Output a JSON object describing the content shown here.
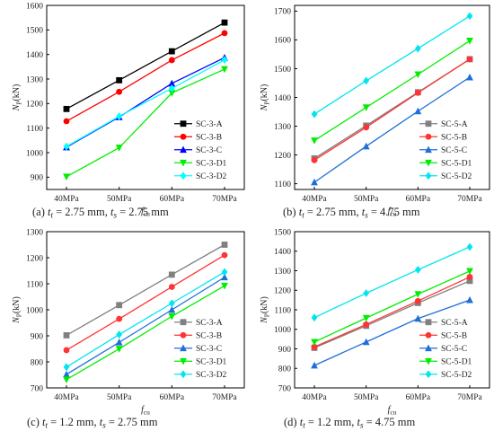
{
  "chart_data": [
    {
      "type": "line",
      "caption_prefix": "(a)",
      "caption_formula": "t_t = 2.75 mm, t_s = 2.75 mm",
      "xlabel": "f_cu",
      "ylabel": "N_P(kN)",
      "categories": [
        "40MPa",
        "50MPa",
        "60MPa",
        "70MPa"
      ],
      "ylim": [
        850,
        1600
      ],
      "yticks": [
        900,
        1000,
        1100,
        1200,
        1300,
        1400,
        1500,
        1600
      ],
      "legend_position": "bottom-right",
      "series": [
        {
          "name": "SC-3-A",
          "color": "#000000",
          "marker": "square",
          "values": [
            1178,
            1295,
            1413,
            1530
          ]
        },
        {
          "name": "SC-3-B",
          "color": "#ff0000",
          "marker": "circle",
          "values": [
            1128,
            1248,
            1377,
            1487
          ]
        },
        {
          "name": "SC-3-C",
          "color": "#0000ff",
          "marker": "triangle",
          "values": [
            1022,
            1145,
            1282,
            1387
          ]
        },
        {
          "name": "SC-3-D1",
          "color": "#00ee00",
          "marker": "triangle-down",
          "values": [
            902,
            1020,
            1243,
            1340
          ]
        },
        {
          "name": "SC-3-D2",
          "color": "#00ffff",
          "marker": "diamond",
          "values": [
            1025,
            1148,
            1262,
            1378
          ]
        }
      ]
    },
    {
      "type": "line",
      "caption_prefix": "(b)",
      "caption_formula": "t_t = 2.75 mm, t_s = 4.75 mm",
      "xlabel": "f_cu",
      "ylabel": "N_P(kN)",
      "categories": [
        "40MPa",
        "50MPa",
        "60MPa",
        "70MPa"
      ],
      "ylim": [
        1080,
        1720
      ],
      "yticks": [
        1100,
        1200,
        1300,
        1400,
        1500,
        1600,
        1700
      ],
      "legend_position": "bottom-right",
      "series": [
        {
          "name": "SC-5-A",
          "color": "#808080",
          "marker": "square",
          "values": [
            1188,
            1302,
            1418,
            1533
          ]
        },
        {
          "name": "SC-5-B",
          "color": "#ff3333",
          "marker": "circle",
          "values": [
            1182,
            1296,
            1416,
            1533
          ]
        },
        {
          "name": "SC-5-C",
          "color": "#1e6fd9",
          "marker": "triangle",
          "values": [
            1105,
            1230,
            1352,
            1470
          ]
        },
        {
          "name": "SC-5-D1",
          "color": "#00ee00",
          "marker": "triangle-down",
          "values": [
            1250,
            1365,
            1480,
            1597
          ]
        },
        {
          "name": "SC-5-D2",
          "color": "#00e5ee",
          "marker": "diamond",
          "values": [
            1342,
            1458,
            1570,
            1683
          ]
        }
      ]
    },
    {
      "type": "line",
      "caption_prefix": "(c)",
      "caption_formula": "t_t = 1.2 mm, t_s = 2.75 mm",
      "xlabel": "f_cu",
      "ylabel": "N_P(kN)",
      "categories": [
        "40MPa",
        "50MPa",
        "60MPa",
        "70MPa"
      ],
      "ylim": [
        700,
        1300
      ],
      "yticks": [
        700,
        800,
        900,
        1000,
        1100,
        1200,
        1300
      ],
      "legend_position": "bottom-right",
      "series": [
        {
          "name": "SC-3-A",
          "color": "#808080",
          "marker": "square",
          "values": [
            902,
            1018,
            1135,
            1250
          ]
        },
        {
          "name": "SC-3-B",
          "color": "#ff3333",
          "marker": "circle",
          "values": [
            845,
            965,
            1088,
            1210
          ]
        },
        {
          "name": "SC-3-C",
          "color": "#1e6fd9",
          "marker": "triangle",
          "values": [
            752,
            875,
            1000,
            1125
          ]
        },
        {
          "name": "SC-3-D1",
          "color": "#00ee00",
          "marker": "triangle-down",
          "values": [
            732,
            850,
            975,
            1092
          ]
        },
        {
          "name": "SC-3-D2",
          "color": "#00e5ee",
          "marker": "diamond",
          "values": [
            780,
            905,
            1025,
            1145
          ]
        }
      ]
    },
    {
      "type": "line",
      "caption_prefix": "(d)",
      "caption_formula": "t_t = 1.2 mm, t_s = 4.75 mm",
      "xlabel": "f_cu",
      "ylabel": "N_P(kN)",
      "categories": [
        "40MPa",
        "50MPa",
        "60MPa",
        "70MPa"
      ],
      "ylim": [
        700,
        1500
      ],
      "yticks": [
        700,
        800,
        900,
        1000,
        1100,
        1200,
        1300,
        1400,
        1500
      ],
      "legend_position": "bottom-right",
      "series": [
        {
          "name": "SC-5-A",
          "color": "#808080",
          "marker": "square",
          "values": [
            905,
            1018,
            1135,
            1248
          ]
        },
        {
          "name": "SC-5-B",
          "color": "#ff3333",
          "marker": "circle",
          "values": [
            910,
            1025,
            1145,
            1268
          ]
        },
        {
          "name": "SC-5-C",
          "color": "#1e6fd9",
          "marker": "triangle",
          "values": [
            815,
            935,
            1055,
            1150
          ]
        },
        {
          "name": "SC-5-D1",
          "color": "#00ee00",
          "marker": "triangle-down",
          "values": [
            935,
            1058,
            1180,
            1298
          ]
        },
        {
          "name": "SC-5-D2",
          "color": "#00e5ee",
          "marker": "diamond",
          "values": [
            1060,
            1185,
            1305,
            1422
          ]
        }
      ]
    }
  ]
}
